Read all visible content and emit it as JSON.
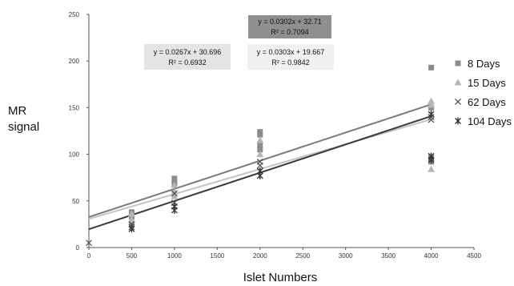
{
  "chart_data": {
    "type": "scatter",
    "xlabel": "Islet Numbers",
    "ylabel": "MR signal",
    "xlim": [
      0,
      4500
    ],
    "ylim": [
      0,
      250
    ],
    "x_ticks": [
      "0",
      "500",
      "1000",
      "1500",
      "2000",
      "2500",
      "3000",
      "3500",
      "4000",
      "4500"
    ],
    "y_ticks": [
      "0",
      "50",
      "100",
      "150",
      "200",
      "250"
    ],
    "grid": false,
    "legend_position": "right",
    "series": [
      {
        "name": "8 Days",
        "marker": "square",
        "color": "#8c8c8c",
        "points": [
          [
            500,
            38
          ],
          [
            500,
            33
          ],
          [
            500,
            25
          ],
          [
            1000,
            74
          ],
          [
            1000,
            71
          ],
          [
            1000,
            68
          ],
          [
            2000,
            124
          ],
          [
            2000,
            121
          ],
          [
            2000,
            110
          ],
          [
            2000,
            105
          ],
          [
            4000,
            193
          ],
          [
            4000,
            150
          ],
          [
            4000,
            92
          ]
        ]
      },
      {
        "name": "15 Days",
        "marker": "triangle",
        "color": "#b5b5b5",
        "points": [
          [
            500,
            36
          ],
          [
            500,
            30
          ],
          [
            1000,
            67
          ],
          [
            1000,
            60
          ],
          [
            1000,
            55
          ],
          [
            2000,
            115
          ],
          [
            2000,
            100
          ],
          [
            4000,
            157
          ],
          [
            4000,
            153
          ],
          [
            4000,
            84
          ]
        ]
      },
      {
        "name": "62 Days",
        "marker": "x",
        "color": "#555555",
        "points": [
          [
            0,
            5
          ],
          [
            500,
            25
          ],
          [
            500,
            22
          ],
          [
            1000,
            58
          ],
          [
            1000,
            48
          ],
          [
            2000,
            92
          ],
          [
            2000,
            88
          ],
          [
            4000,
            140
          ],
          [
            4000,
            137
          ],
          [
            4000,
            96
          ]
        ]
      },
      {
        "name": "104 Days",
        "marker": "star",
        "color": "#333333",
        "points": [
          [
            500,
            20
          ],
          [
            1000,
            44
          ],
          [
            1000,
            40
          ],
          [
            2000,
            82
          ],
          [
            2000,
            77
          ],
          [
            4000,
            143
          ],
          [
            4000,
            98
          ],
          [
            4000,
            94
          ]
        ]
      }
    ],
    "trendlines": [
      {
        "slope": 0.0302,
        "intercept": 32.71,
        "color": "#7a7a7a",
        "equation": "y = 0.0302x + 32.71",
        "r2": "R² = 0.7094",
        "box_fill": "#8f8f8f"
      },
      {
        "slope": 0.0267,
        "intercept": 30.696,
        "color": "#c4c4c4",
        "equation": "y = 0.0267x + 30.696",
        "r2": "R² = 0.6932",
        "box_fill": "#e4e4e4"
      },
      {
        "slope": 0.0303,
        "intercept": 19.667,
        "color": "#3a3a3a",
        "equation": "y = 0.0303x + 19.667",
        "r2": "R² = 0.9842",
        "box_fill": "#f0f0f0"
      }
    ]
  }
}
